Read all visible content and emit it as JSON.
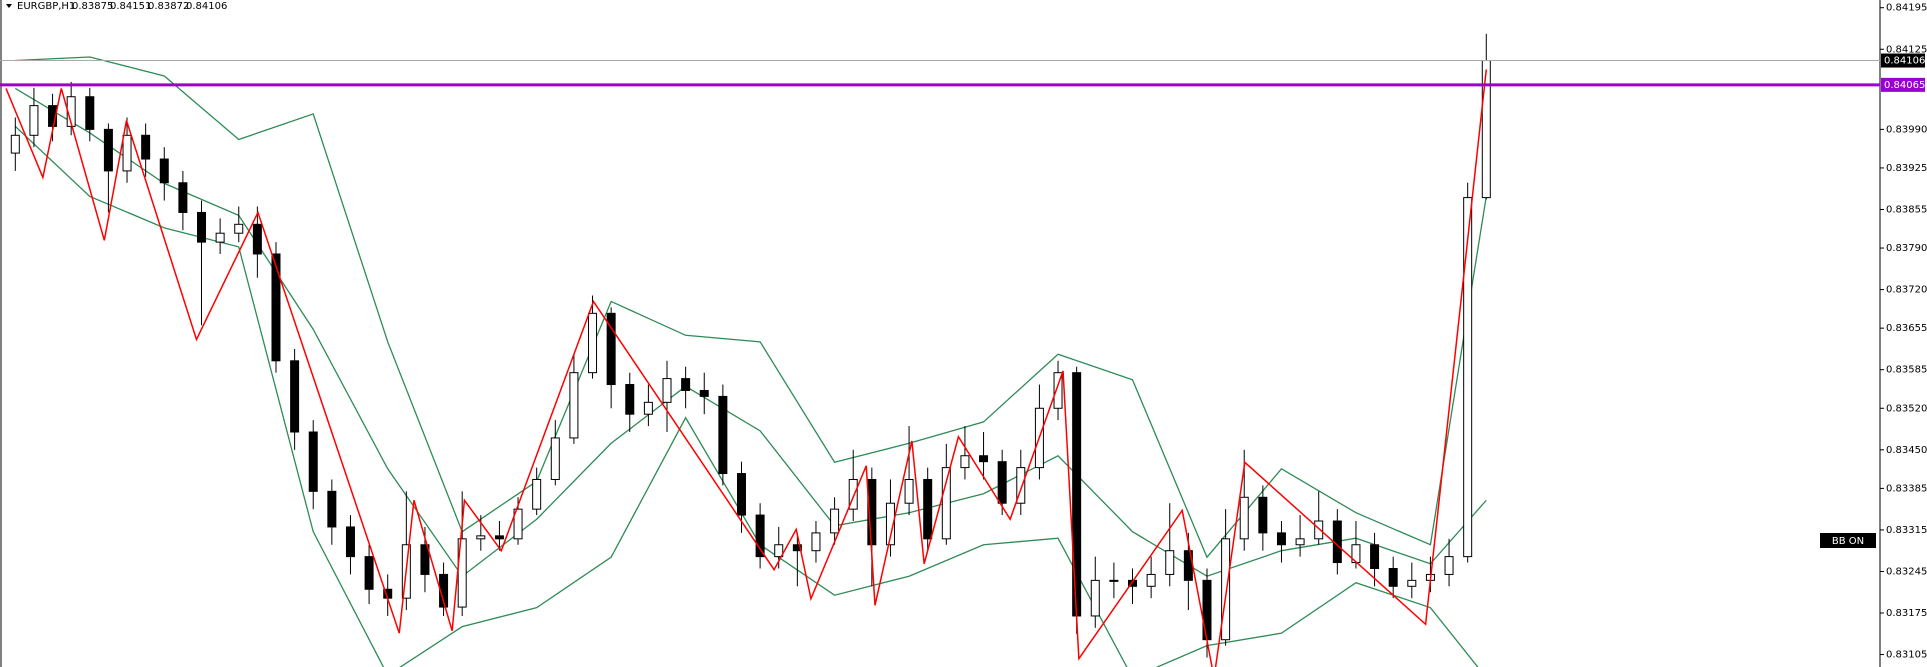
{
  "chart_data": {
    "type": "candlestick",
    "symbol": "EURGBP,H1",
    "ylim": [
      0.83084,
      0.84208
    ],
    "yticks": [
      0.84195,
      0.84125,
      {
        "value": 0.8399,
        "label": "0.83990"
      },
      0.83925,
      0.83855,
      {
        "value": 0.8379,
        "label": "0.83790"
      },
      {
        "value": 0.8372,
        "label": "0.83720"
      },
      0.83655,
      0.83585,
      {
        "value": 0.8352,
        "label": "0.83520"
      },
      {
        "value": 0.8345,
        "label": "0.83450"
      },
      0.83385,
      0.83315,
      0.83245,
      0.83175,
      0.83105
    ],
    "open": [
      0.8395,
      0.8398,
      0.8403,
      0.83995,
      0.84045,
      0.8399,
      0.8392,
      0.8398,
      0.8394,
      0.839,
      0.8385,
      0.838,
      0.83815,
      0.8383,
      0.8378,
      0.836,
      0.8348,
      0.8338,
      0.8332,
      0.8327,
      0.83215,
      0.832,
      0.8329,
      0.8324,
      0.83185,
      0.833,
      0.83305,
      0.833,
      0.8335,
      0.834,
      0.8347,
      0.8358,
      0.8368,
      0.8356,
      0.8351,
      0.8353,
      0.8357,
      0.8355,
      0.8354,
      0.8341,
      0.8334,
      0.8327,
      0.8329,
      0.8328,
      0.8331,
      0.8335,
      0.834,
      0.8329,
      0.8336,
      0.834,
      0.833,
      0.8342,
      0.8344,
      0.8343,
      0.8336,
      0.8342,
      0.8352,
      0.8358,
      0.8317,
      0.8323,
      0.8323,
      0.8322,
      0.8324,
      0.8328,
      0.8323,
      0.8313,
      0.833,
      0.8337,
      0.8331,
      0.8329,
      0.833,
      0.8333,
      0.8326,
      0.8329,
      0.8325,
      0.8322,
      0.8323,
      0.8324,
      0.8327,
      0.83875
    ],
    "high": [
      0.8401,
      0.8406,
      0.8405,
      0.8407,
      0.8406,
      0.84,
      0.8401,
      0.84,
      0.8396,
      0.8392,
      0.8387,
      0.8384,
      0.8386,
      0.8386,
      0.838,
      0.8362,
      0.835,
      0.834,
      0.8334,
      0.8329,
      0.8324,
      0.8338,
      0.8332,
      0.8326,
      0.8338,
      0.8334,
      0.8333,
      0.8337,
      0.8342,
      0.835,
      0.8361,
      0.8371,
      0.8369,
      0.8358,
      0.8356,
      0.836,
      0.8359,
      0.8358,
      0.8356,
      0.8343,
      0.8336,
      0.8332,
      0.8331,
      0.8333,
      0.8337,
      0.8345,
      0.8342,
      0.834,
      0.8349,
      0.8342,
      0.8346,
      0.8349,
      0.8348,
      0.8345,
      0.8345,
      0.8356,
      0.836,
      0.8359,
      0.8327,
      0.8326,
      0.8325,
      0.8327,
      0.8336,
      0.8331,
      0.8325,
      0.8335,
      0.8345,
      0.8339,
      0.8333,
      0.8334,
      0.8338,
      0.8335,
      0.8333,
      0.8331,
      0.8327,
      0.8326,
      0.8327,
      0.833,
      0.839,
      0.84151
    ],
    "low": [
      0.8392,
      0.8396,
      0.8397,
      0.8398,
      0.8397,
      0.8385,
      0.839,
      0.8391,
      0.8387,
      0.8382,
      0.8366,
      0.8378,
      0.838,
      0.8374,
      0.8358,
      0.8345,
      0.8335,
      0.8329,
      0.8324,
      0.8319,
      0.8317,
      0.8318,
      0.8321,
      0.8317,
      0.8317,
      0.8328,
      0.8328,
      0.8329,
      0.8334,
      0.8339,
      0.8346,
      0.8357,
      0.8352,
      0.8348,
      0.8349,
      0.8348,
      0.8352,
      0.8351,
      0.8339,
      0.8331,
      0.8325,
      0.8325,
      0.8322,
      0.8326,
      0.8329,
      0.8333,
      0.8322,
      0.8327,
      0.8334,
      0.8328,
      0.8329,
      0.834,
      0.834,
      0.8334,
      0.8334,
      0.834,
      0.835,
      0.8314,
      0.8315,
      0.832,
      0.8319,
      0.832,
      0.8322,
      0.8318,
      0.831,
      0.8312,
      0.8328,
      0.8328,
      0.8326,
      0.8327,
      0.8329,
      0.8324,
      0.8325,
      0.8322,
      0.832,
      0.832,
      0.8321,
      0.8322,
      0.8326,
      0.83872
    ],
    "close": [
      0.8398,
      0.8403,
      0.83995,
      0.84045,
      0.8399,
      0.8392,
      0.8398,
      0.8394,
      0.839,
      0.8385,
      0.838,
      0.83815,
      0.8383,
      0.8378,
      0.836,
      0.8348,
      0.8338,
      0.8332,
      0.8327,
      0.83215,
      0.832,
      0.8329,
      0.8324,
      0.83185,
      0.833,
      0.83305,
      0.833,
      0.8335,
      0.834,
      0.8347,
      0.8358,
      0.8368,
      0.8356,
      0.8351,
      0.8353,
      0.8357,
      0.8355,
      0.8354,
      0.8341,
      0.8334,
      0.8327,
      0.8329,
      0.8328,
      0.8331,
      0.8335,
      0.834,
      0.8329,
      0.8336,
      0.834,
      0.833,
      0.8342,
      0.8344,
      0.8343,
      0.8336,
      0.8342,
      0.8352,
      0.8358,
      0.8317,
      0.8323,
      0.8323,
      0.8322,
      0.8324,
      0.8328,
      0.8323,
      0.8313,
      0.833,
      0.8337,
      0.8331,
      0.8329,
      0.833,
      0.8333,
      0.8326,
      0.8329,
      0.8325,
      0.8322,
      0.8323,
      0.8324,
      0.8327,
      0.83875,
      0.84106
    ],
    "bands": {
      "color": "#2e8b57",
      "x": [
        0,
        4,
        8,
        12,
        16,
        20,
        24,
        28,
        32,
        36,
        40,
        44,
        48,
        52,
        56,
        60,
        64,
        68,
        72,
        76,
        79
      ],
      "upper": [
        0.84106,
        0.84112,
        0.8408,
        0.83973,
        0.84016,
        0.83632,
        0.83312,
        0.83397,
        0.837,
        0.83643,
        0.83632,
        0.83429,
        0.83461,
        0.83497,
        0.83611,
        0.83568,
        0.83269,
        0.83418,
        0.83344,
        0.8329,
        0.83877
      ],
      "middle": [
        0.84059,
        0.83984,
        0.83899,
        0.83845,
        0.83653,
        0.83418,
        0.83237,
        0.83333,
        0.83461,
        0.83557,
        0.83482,
        0.83322,
        0.83344,
        0.83376,
        0.8344,
        0.83312,
        0.83237,
        0.8328,
        0.83301,
        0.83258,
        0.83365
      ],
      "lower": [
        0.83995,
        0.83877,
        0.83824,
        0.83792,
        0.83312,
        0.8307,
        0.83152,
        0.83184,
        0.83269,
        0.83504,
        0.8329,
        0.83205,
        0.83237,
        0.8329,
        0.83301,
        0.83066,
        0.8312,
        0.83141,
        0.83226,
        0.83184,
        0.83066
      ]
    },
    "zigzag": {
      "color": "#ff0000",
      "x": [
        -0.5,
        1.48,
        2.47,
        4.78,
        5.97,
        9.73,
        13.03,
        20.62,
        21.41,
        23.46,
        24.12,
        26.1,
        31.05,
        40.75,
        41.94,
        42.73,
        45.7,
        46.17,
        48.15,
        48.81,
        50.65,
        53.43,
        56.27,
        57.12,
        62.67,
        64.38,
        66.03,
        75.74,
        79
      ],
      "values": [
        0.84059,
        0.83909,
        0.84059,
        0.83803,
        0.84005,
        0.83636,
        0.8385,
        0.83141,
        0.83365,
        0.83145,
        0.83365,
        0.8328,
        0.837,
        0.83248,
        0.83316,
        0.83199,
        0.83423,
        0.83188,
        0.83465,
        0.83258,
        0.83472,
        0.83333,
        0.83583,
        0.83098,
        0.83348,
        0.83066,
        0.83429,
        0.83156,
        0.84091
      ]
    },
    "hline": {
      "value": 0.84065,
      "color": "#9b00d3"
    },
    "indicator_label": "BB ON"
  }
}
